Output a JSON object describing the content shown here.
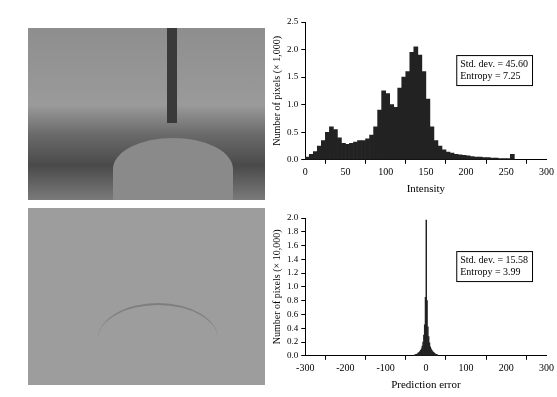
{
  "chart_data": [
    {
      "type": "histogram",
      "x_label": "Intensity",
      "y_label": "Number of pixels (× 1,000)",
      "annotations": [
        "Std. dev. = 45.60",
        "Entropy = 7.25"
      ],
      "bins": [
        0,
        5,
        10,
        15,
        20,
        25,
        30,
        35,
        40,
        45,
        50,
        55,
        60,
        65,
        70,
        75,
        80,
        85,
        90,
        95,
        100,
        105,
        110,
        115,
        120,
        125,
        130,
        135,
        140,
        145,
        150,
        155,
        160,
        165,
        170,
        175,
        180,
        185,
        190,
        195,
        200,
        205,
        210,
        215,
        220,
        225,
        230,
        235,
        240,
        245,
        250,
        255,
        260
      ],
      "values": [
        0.05,
        0.1,
        0.15,
        0.25,
        0.35,
        0.5,
        0.6,
        0.55,
        0.4,
        0.3,
        0.28,
        0.3,
        0.32,
        0.35,
        0.35,
        0.38,
        0.45,
        0.6,
        0.9,
        1.25,
        1.2,
        1.0,
        0.95,
        1.3,
        1.5,
        1.6,
        1.95,
        2.05,
        1.9,
        1.6,
        1.1,
        0.6,
        0.35,
        0.25,
        0.18,
        0.14,
        0.12,
        0.1,
        0.09,
        0.08,
        0.07,
        0.06,
        0.05,
        0.05,
        0.04,
        0.04,
        0.03,
        0.03,
        0.02,
        0.02,
        0.02,
        0.1
      ],
      "color": "#222222",
      "xlim": [
        0,
        300
      ],
      "xticks": [
        0,
        50,
        100,
        150,
        200,
        250,
        300
      ],
      "ylim": [
        0,
        2.5
      ],
      "yticks": [
        {
          "value": 0,
          "label": "0.0"
        },
        0.5,
        {
          "value": 1,
          "label": "1.0"
        },
        1.5,
        {
          "value": 2,
          "label": "2.0"
        },
        2.5
      ],
      "grid": false
    },
    {
      "type": "histogram",
      "x_label": "Prediction error",
      "y_label": "Number of pixels (× 10,000)",
      "annotations": [
        "Std. dev. = 15.58",
        "Entropy = 3.99"
      ],
      "bins": [
        -30,
        -28,
        -26,
        -24,
        -22,
        -20,
        -18,
        -16,
        -14,
        -12,
        -10,
        -8,
        -6,
        -4,
        -2,
        0,
        2,
        4,
        6,
        8,
        10,
        12,
        14,
        16,
        18,
        20,
        22,
        24,
        26,
        28,
        30
      ],
      "values": [
        0.01,
        0.01,
        0.02,
        0.02,
        0.03,
        0.04,
        0.05,
        0.06,
        0.08,
        0.1,
        0.14,
        0.2,
        0.3,
        0.45,
        0.85,
        1.97,
        0.8,
        0.42,
        0.28,
        0.19,
        0.13,
        0.1,
        0.08,
        0.06,
        0.05,
        0.04,
        0.03,
        0.02,
        0.02,
        0.01
      ],
      "color": "#222222",
      "xlim": [
        -300,
        300
      ],
      "xticks": [
        -300,
        -200,
        -100,
        0,
        100,
        200,
        300
      ],
      "ylim": [
        0,
        2
      ],
      "yticks": [
        {
          "value": 0,
          "label": "0.0"
        },
        0.2,
        0.4,
        0.6,
        0.8,
        {
          "value": 1,
          "label": "1.0"
        },
        1.2,
        1.4,
        1.6,
        1.8,
        {
          "value": 2,
          "label": "2.0"
        }
      ],
      "grid": false
    }
  ]
}
